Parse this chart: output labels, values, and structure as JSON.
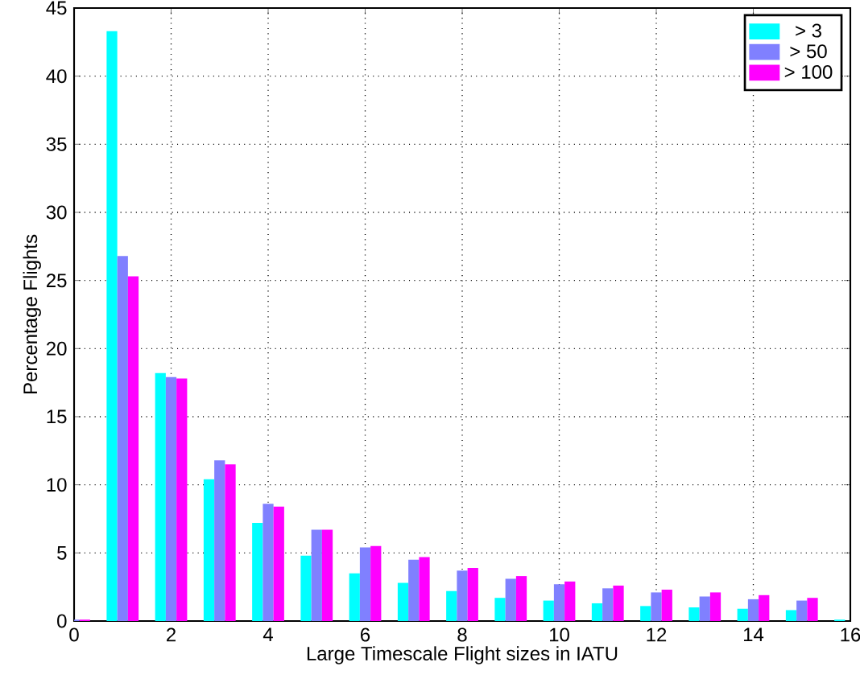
{
  "chart_data": {
    "type": "bar",
    "xlabel": "Large Timescale Flight sizes in IATU",
    "ylabel": "Percentage Flights",
    "x": [
      0,
      1,
      2,
      3,
      4,
      5,
      6,
      7,
      8,
      9,
      10,
      11,
      12,
      13,
      14,
      15,
      16
    ],
    "series": [
      {
        "name": "> 3",
        "color": "#00ffff",
        "values": [
          0.1,
          43.3,
          18.2,
          10.4,
          7.2,
          4.8,
          3.5,
          2.8,
          2.2,
          1.7,
          1.5,
          1.3,
          1.1,
          1.0,
          0.9,
          0.8,
          0.1
        ]
      },
      {
        "name": "> 50",
        "color": "#8080ff",
        "values": [
          0.1,
          26.8,
          17.9,
          11.8,
          8.6,
          6.7,
          5.4,
          4.5,
          3.7,
          3.1,
          2.7,
          2.4,
          2.1,
          1.8,
          1.6,
          1.5,
          0
        ]
      },
      {
        "name": "> 100",
        "color": "#ff00ff",
        "values": [
          0.1,
          25.3,
          17.8,
          11.5,
          8.4,
          6.7,
          5.5,
          4.7,
          3.9,
          3.3,
          2.9,
          2.6,
          2.3,
          2.1,
          1.9,
          1.7,
          0
        ]
      }
    ],
    "xlim": [
      0,
      16
    ],
    "xticks": [
      0,
      2,
      4,
      6,
      8,
      10,
      12,
      14,
      16
    ],
    "ylim": [
      0,
      45
    ],
    "yticks": [
      0,
      5,
      10,
      15,
      20,
      25,
      30,
      35,
      40,
      45
    ],
    "grid": true,
    "legend": "top right"
  }
}
